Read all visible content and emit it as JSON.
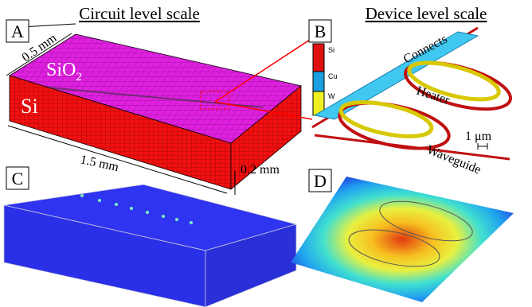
{
  "header": {
    "left": "Circuit level scale",
    "right": "Device level scale"
  },
  "panels": {
    "a": {
      "label": "A",
      "depth": "0.5 mm",
      "top_material": {
        "base": "SiO",
        "subscript": "2"
      },
      "bottom_material": "Si",
      "length": "1.5 mm",
      "height": "0.2 mm"
    },
    "b": {
      "label": "B",
      "legend": [
        "Si",
        "Cu",
        "W"
      ],
      "connects": "Connects",
      "heater": "Heater",
      "scale": "1 μm",
      "waveguide": "Waveguide"
    },
    "c": {
      "label": "C"
    },
    "d": {
      "label": "D"
    }
  }
}
